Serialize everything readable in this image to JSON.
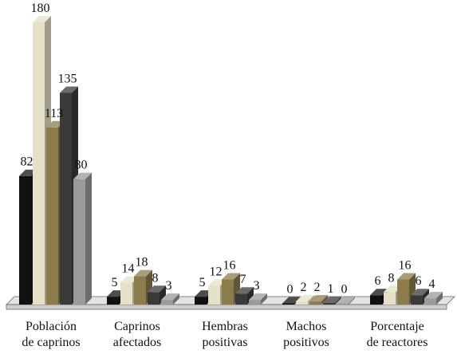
{
  "chart_data": {
    "type": "bar",
    "title": "",
    "xlabel": "",
    "ylabel": "",
    "ylim": [
      0,
      180
    ],
    "grid": false,
    "legend": "none",
    "style": "3d-columns",
    "categories": [
      [
        "Población",
        "de caprinos"
      ],
      [
        "Caprinos",
        "afectados"
      ],
      [
        "Hembras",
        "positivas"
      ],
      [
        "Machos",
        "positivos"
      ],
      [
        "Porcentaje",
        "de reactores"
      ]
    ],
    "series": [
      {
        "color": "#111111",
        "values": [
          82,
          5,
          5,
          0,
          6
        ]
      },
      {
        "color": "#e6e0c8",
        "values": [
          180,
          14,
          12,
          2,
          8
        ]
      },
      {
        "color": "#8c7c4c",
        "values": [
          113,
          18,
          16,
          2,
          16
        ]
      },
      {
        "color": "#3a3a3a",
        "values": [
          135,
          8,
          7,
          1,
          6
        ]
      },
      {
        "color": "#9a9a9a",
        "values": [
          80,
          3,
          3,
          0,
          4
        ]
      }
    ]
  }
}
